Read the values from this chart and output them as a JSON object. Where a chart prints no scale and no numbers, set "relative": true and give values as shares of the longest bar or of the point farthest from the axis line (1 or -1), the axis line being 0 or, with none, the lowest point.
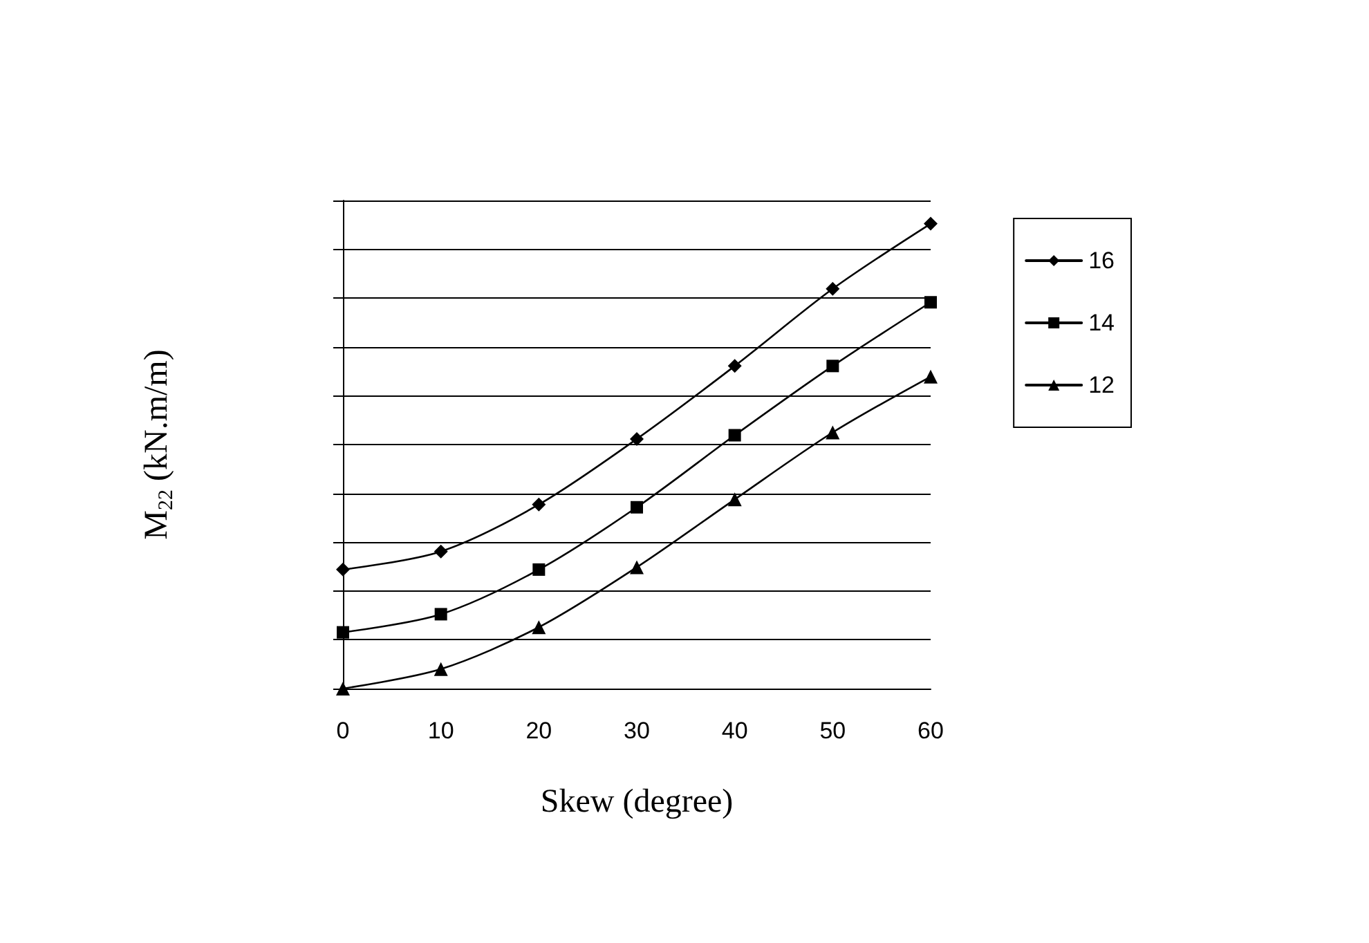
{
  "chart_data": {
    "type": "line",
    "relative": true,
    "xlabel": "Skew (degree)",
    "ylabel": "M$_{22}$ (kN.m/m)",
    "x": [
      0,
      10,
      20,
      30,
      40,
      50,
      60
    ],
    "xlim": [
      0,
      60
    ],
    "xticks": [
      0,
      10,
      20,
      30,
      40,
      50,
      60
    ],
    "grid": "y",
    "legend": "right",
    "line_style": "solid",
    "series": [
      {
        "name": "16",
        "color": "#000000",
        "marker": "diamond",
        "values": [
          0.256,
          0.295,
          0.396,
          0.537,
          0.694,
          0.86,
          1
        ]
      },
      {
        "name": "14",
        "color": "#000000",
        "marker": "square",
        "values": [
          0.121,
          0.16,
          0.256,
          0.39,
          0.545,
          0.694,
          0.831
        ]
      },
      {
        "name": "12",
        "color": "#000000",
        "marker": "triangle",
        "values": [
          0,
          0.042,
          0.132,
          0.261,
          0.407,
          0.551,
          0.671
        ]
      }
    ]
  }
}
